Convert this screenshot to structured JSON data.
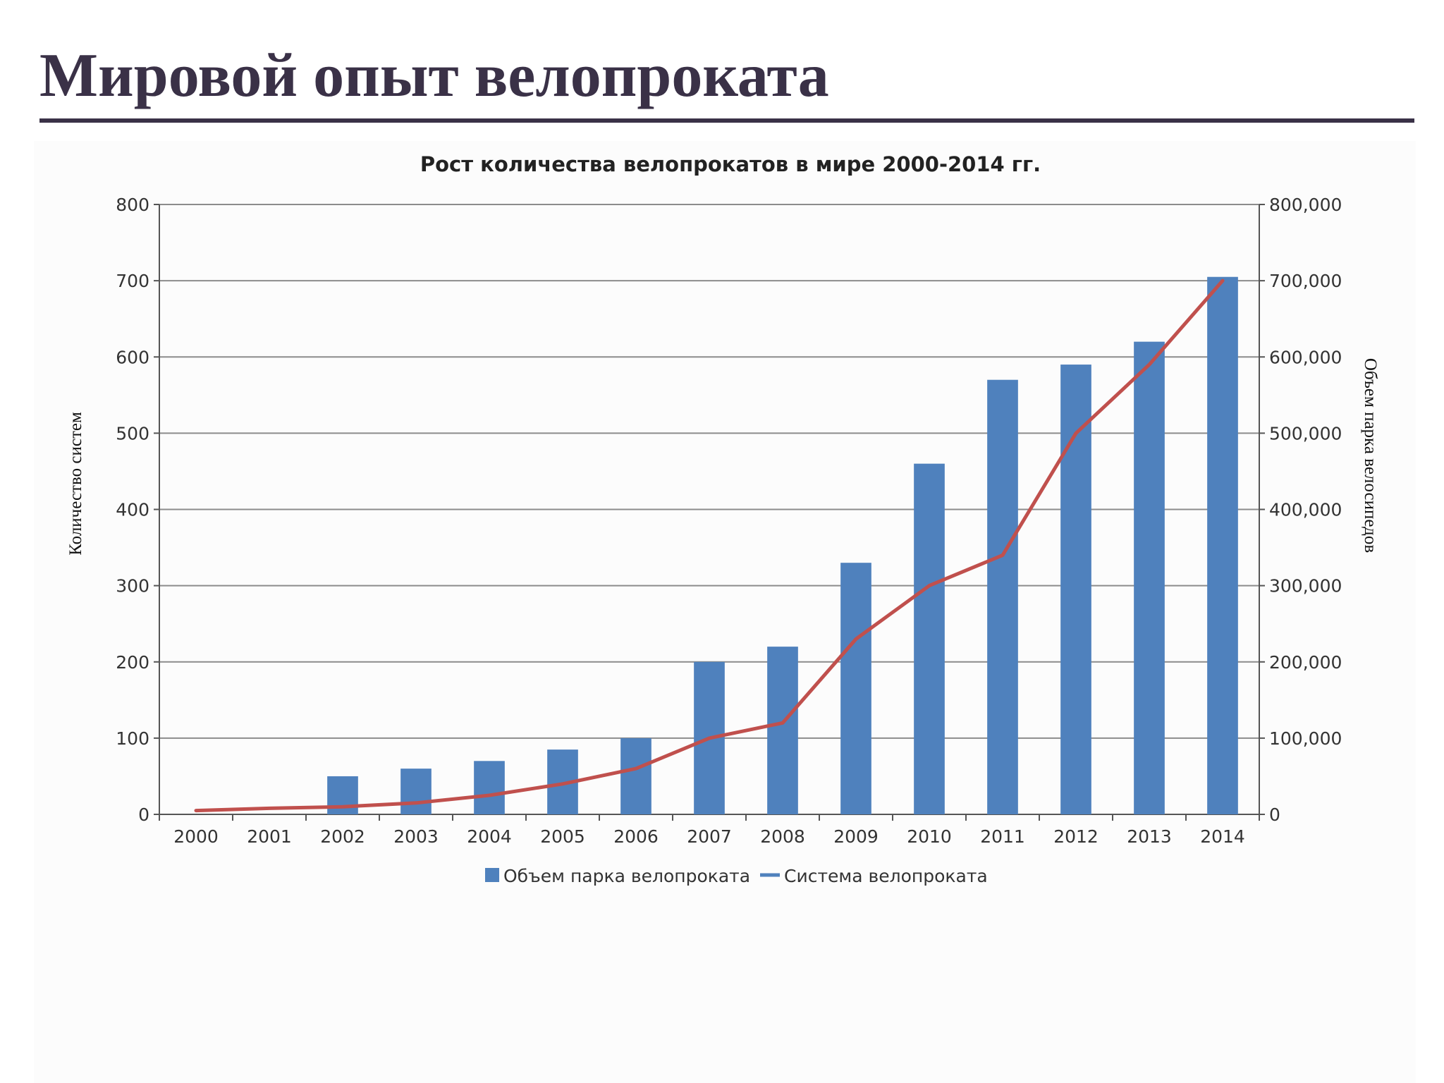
{
  "page": {
    "title": "Мировой опыт велопроката"
  },
  "colors": {
    "title": "#3a3147",
    "bar": "#4f81bd",
    "line": "#c0504d",
    "grid": "#8c8c8c"
  },
  "chart_data": {
    "type": "bar",
    "title": "Рост количества велопрокатов в мире 2000-2014 гг.",
    "xlabel": "",
    "ylabel": "Количество систем",
    "y2label": "Объем парка велосипедов",
    "categories": [
      "2000",
      "2001",
      "2002",
      "2003",
      "2004",
      "2005",
      "2006",
      "2007",
      "2008",
      "2009",
      "2010",
      "2011",
      "2012",
      "2013",
      "2014"
    ],
    "ylim": [
      0,
      800
    ],
    "y2lim": [
      0,
      800000
    ],
    "yticks": [
      "0",
      "100",
      "200",
      "300",
      "400",
      "500",
      "600",
      "700",
      "800"
    ],
    "y2ticks": [
      "0",
      "100,000",
      "200,000",
      "300,000",
      "400,000",
      "500,000",
      "600,000",
      "700,000",
      "800,000"
    ],
    "grid": true,
    "legend_position": "bottom",
    "series": [
      {
        "name": "Объем парка велопроката",
        "type": "bar",
        "axis": "left",
        "values": [
          0,
          0,
          50,
          60,
          70,
          85,
          100,
          200,
          220,
          330,
          460,
          570,
          590,
          620,
          705
        ]
      },
      {
        "name": "Система велопроката",
        "type": "line",
        "axis": "right",
        "values": [
          5000,
          8000,
          10000,
          15000,
          25000,
          40000,
          60000,
          100000,
          120000,
          230000,
          300000,
          340000,
          500000,
          590000,
          700000
        ]
      }
    ]
  }
}
